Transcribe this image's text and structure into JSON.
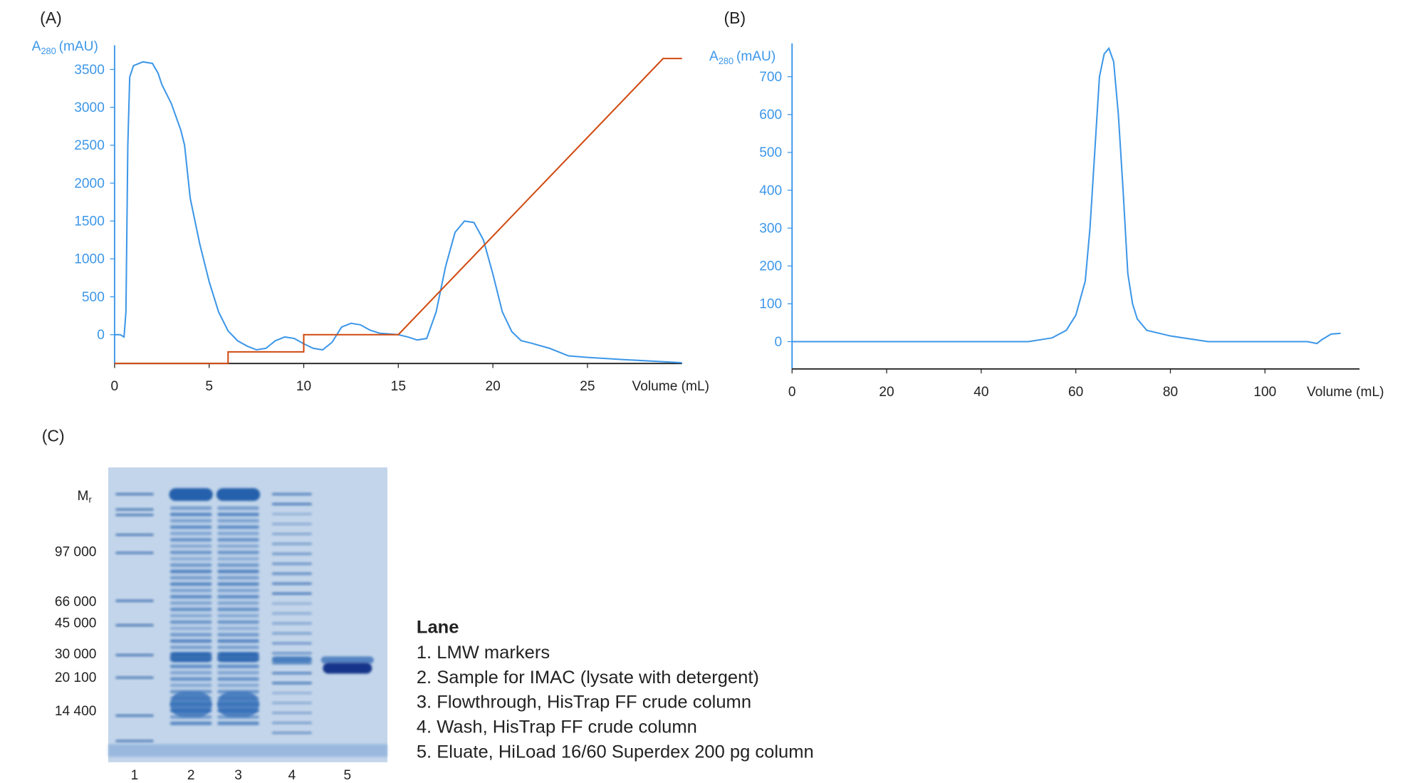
{
  "chart_data": [
    {
      "type": "line",
      "panel": "(A)",
      "ylabel": {
        "main": "A",
        "sub": "280",
        "unit": "(mAU)"
      },
      "xlabel": "Volume (mL)",
      "xlim": [
        0,
        30
      ],
      "xticks": [
        0,
        5,
        10,
        15,
        20,
        25
      ],
      "ylim": [
        -380,
        3820
      ],
      "yticks": [
        0,
        500,
        1000,
        1500,
        2000,
        2500,
        3000,
        3500
      ],
      "series": [
        {
          "color": "#3d97e8",
          "x": [
            0,
            0.3,
            0.5,
            0.6,
            0.7,
            0.8,
            1,
            1.5,
            2,
            2.3,
            2.5,
            3,
            3.5,
            3.7,
            4,
            4.5,
            5,
            5.5,
            6,
            6.5,
            7,
            7.5,
            8,
            8.5,
            9,
            9.5,
            10,
            10.5,
            11,
            11.5,
            12,
            12.5,
            13,
            13.5,
            14,
            15,
            15.5,
            16,
            16.5,
            17,
            17.5,
            18,
            18.5,
            19,
            19.5,
            20,
            20.5,
            21,
            21.5,
            22,
            23,
            24,
            25,
            27,
            30
          ],
          "values": [
            0,
            0,
            -30,
            300,
            2500,
            3400,
            3550,
            3600,
            3580,
            3450,
            3300,
            3050,
            2700,
            2500,
            1800,
            1200,
            700,
            300,
            50,
            -80,
            -150,
            -200,
            -180,
            -80,
            -30,
            -50,
            -120,
            -180,
            -200,
            -100,
            100,
            150,
            130,
            60,
            20,
            0,
            -30,
            -70,
            -50,
            300,
            900,
            1350,
            1500,
            1480,
            1250,
            800,
            300,
            40,
            -80,
            -110,
            -180,
            -280,
            -300,
            -330,
            -370
          ]
        },
        {
          "color": "#d04a10",
          "x": [
            0,
            6,
            6,
            10,
            10,
            15,
            29,
            30
          ],
          "values": [
            -380,
            -380,
            -227,
            -227,
            0,
            0,
            3644,
            3644
          ]
        }
      ]
    },
    {
      "type": "line",
      "panel": "(B)",
      "ylabel": {
        "main": "A",
        "sub": "280",
        "unit": "(mAU)"
      },
      "xlabel": "Volume (mL)",
      "xlim": [
        0,
        120
      ],
      "xticks": [
        0,
        20,
        40,
        60,
        80,
        100
      ],
      "ylim": [
        -72,
        788
      ],
      "yticks": [
        0,
        100,
        200,
        300,
        400,
        500,
        600,
        700
      ],
      "series": [
        {
          "color": "#3d97e8",
          "x": [
            0,
            50,
            55,
            58,
            60,
            62,
            63,
            64,
            65,
            66,
            67,
            68,
            69,
            70,
            71,
            72,
            73,
            75,
            80,
            88,
            109,
            111,
            112,
            114,
            116
          ],
          "values": [
            0,
            0,
            10,
            30,
            70,
            160,
            300,
            500,
            700,
            760,
            775,
            740,
            600,
            400,
            180,
            100,
            60,
            30,
            15,
            0,
            0,
            -5,
            5,
            20,
            22
          ]
        }
      ]
    }
  ],
  "gel": {
    "panel": "(C)",
    "mr": {
      "main": "M",
      "sub": "r"
    },
    "markers": [
      "97 000",
      "66 000",
      "45 000",
      "30 000",
      "20 100",
      "14 400"
    ],
    "lanes": [
      "1",
      "2",
      "3",
      "4",
      "5"
    ],
    "legend": {
      "title": "Lane",
      "items": [
        "1. LMW  markers",
        "2. Sample for IMAC (lysate with detergent)",
        "3. Flowthrough, HisTrap FF crude column",
        "4. Wash, HisTrap FF crude column",
        "5. Eluate, HiLoad 16/60 Superdex 200 pg column"
      ]
    }
  }
}
